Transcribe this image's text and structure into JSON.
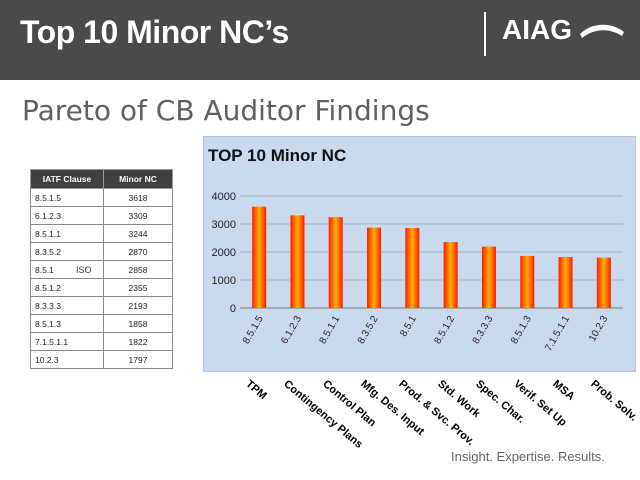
{
  "header": {
    "title": "Top 10 Minor NC’s",
    "logo_text": "AIAG"
  },
  "subtitle": "Pareto of CB Auditor Findings",
  "table": {
    "headers": [
      "IATF Clause",
      "Minor NC"
    ],
    "rows": [
      [
        "8.5.1.5",
        "3618"
      ],
      [
        "6.1.2.3",
        "3309"
      ],
      [
        "8.5.1.1",
        "3244"
      ],
      [
        "8.3.5.2",
        "2870"
      ],
      [
        "8.5.1",
        "2858"
      ],
      [
        "8.5.1.2",
        "2355"
      ],
      [
        "8.3.3.3",
        "2193"
      ],
      [
        "8.5.1.3",
        "1858"
      ],
      [
        "7.1.5.1.1",
        "1822"
      ],
      [
        "10.2.3",
        "1797"
      ]
    ],
    "note": "ISO"
  },
  "category_labels": [
    "TPM",
    "Contingency Plans",
    "Control Plan",
    "Mfg. Des. Input",
    "Prod. & Svc. Prov.",
    "Std. Work",
    "Spec. Char.",
    "Verif. Set Up",
    "MSA",
    "Prob. Solv."
  ],
  "tagline": "Insight. Expertise. Results.",
  "colors": {
    "header_bg": "#4a4a4d",
    "chart_bg": "#c9d9ee",
    "bar_top": "#ff1a00",
    "bar_mid": "#ffb000"
  },
  "chart_data": {
    "type": "bar",
    "title": "TOP 10 Minor NC",
    "categories": [
      "8.5.1.5",
      "6.1.2.3",
      "8.5.1.1",
      "8.3.5.2",
      "8.5.1",
      "8.5.1.2",
      "8.3.3.3",
      "8.5.1.3",
      "7.1.5.1.1",
      "10.2.3"
    ],
    "values": [
      3618,
      3309,
      3244,
      2870,
      2858,
      2355,
      2193,
      1858,
      1822,
      1797
    ],
    "ylim": [
      0,
      4000
    ],
    "yticks": [
      0,
      1000,
      2000,
      3000,
      4000
    ],
    "grid": true,
    "legend": "none"
  }
}
